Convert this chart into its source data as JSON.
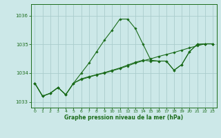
{
  "title": "Graphe pression niveau de la mer (hPa)",
  "background_color": "#cce8e8",
  "grid_color": "#aacccc",
  "line_color": "#1a6b1a",
  "marker_color": "#1a6b1a",
  "xlim": [
    -0.5,
    23.5
  ],
  "ylim": [
    1032.8,
    1036.4
  ],
  "yticks": [
    1033,
    1034,
    1035,
    1036
  ],
  "xticks": [
    0,
    1,
    2,
    3,
    4,
    5,
    6,
    7,
    8,
    9,
    10,
    11,
    12,
    13,
    14,
    15,
    16,
    17,
    18,
    19,
    20,
    21,
    22,
    23
  ],
  "series": [
    [
      1033.65,
      1033.2,
      1033.3,
      1033.5,
      1033.25,
      1033.65,
      1034.0,
      1034.35,
      1034.75,
      1035.15,
      1035.5,
      1035.88,
      1035.88,
      1035.55,
      1035.0,
      1034.45,
      1034.42,
      1034.42,
      1034.1,
      1034.3,
      1034.75,
      1035.0,
      1035.02,
      1035.02
    ],
    [
      1033.65,
      1033.2,
      1033.3,
      1033.5,
      1033.25,
      1033.65,
      1033.8,
      1033.88,
      1033.95,
      1034.02,
      1034.1,
      1034.18,
      1034.28,
      1034.38,
      1034.45,
      1034.42,
      1034.42,
      1034.42,
      1034.1,
      1034.3,
      1034.75,
      1035.0,
      1035.02,
      1035.02
    ],
    [
      1033.65,
      1033.2,
      1033.3,
      1033.5,
      1033.25,
      1033.65,
      1033.78,
      1033.86,
      1033.94,
      1034.0,
      1034.08,
      1034.16,
      1034.25,
      1034.35,
      1034.43,
      1034.5,
      1034.58,
      1034.65,
      1034.72,
      1034.8,
      1034.88,
      1034.95,
      1035.02,
      1035.02
    ]
  ]
}
